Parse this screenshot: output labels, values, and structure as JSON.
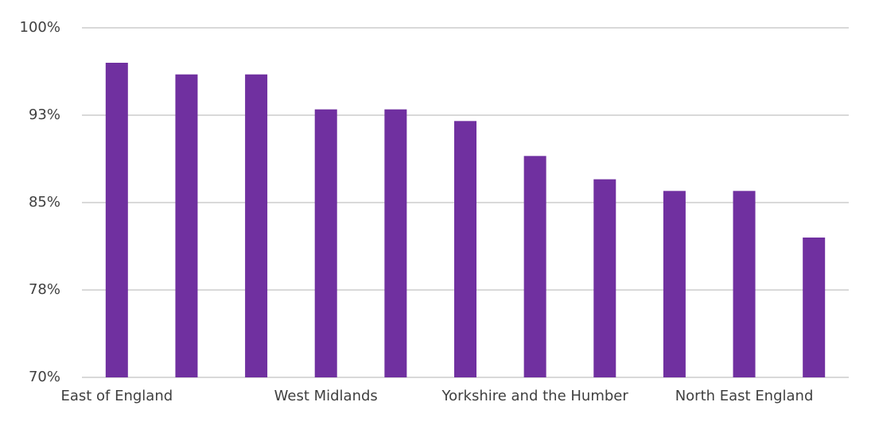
{
  "chart_data": {
    "type": "bar",
    "categories": [
      "East of England",
      null,
      null,
      "West Midlands",
      null,
      null,
      "Yorkshire and the Humber",
      null,
      null,
      "North East England",
      null
    ],
    "values": [
      97,
      96,
      96,
      93,
      93,
      92,
      89,
      87,
      86,
      86,
      82
    ],
    "color": "#7030a0",
    "ylim": [
      70,
      100
    ],
    "yticks": [
      {
        "value": 70,
        "label": "70%"
      },
      {
        "value": 77.5,
        "label": "78%"
      },
      {
        "value": 85,
        "label": "85%"
      },
      {
        "value": 92.5,
        "label": "93%"
      },
      {
        "value": 100,
        "label": "100%"
      }
    ],
    "grid": true
  }
}
